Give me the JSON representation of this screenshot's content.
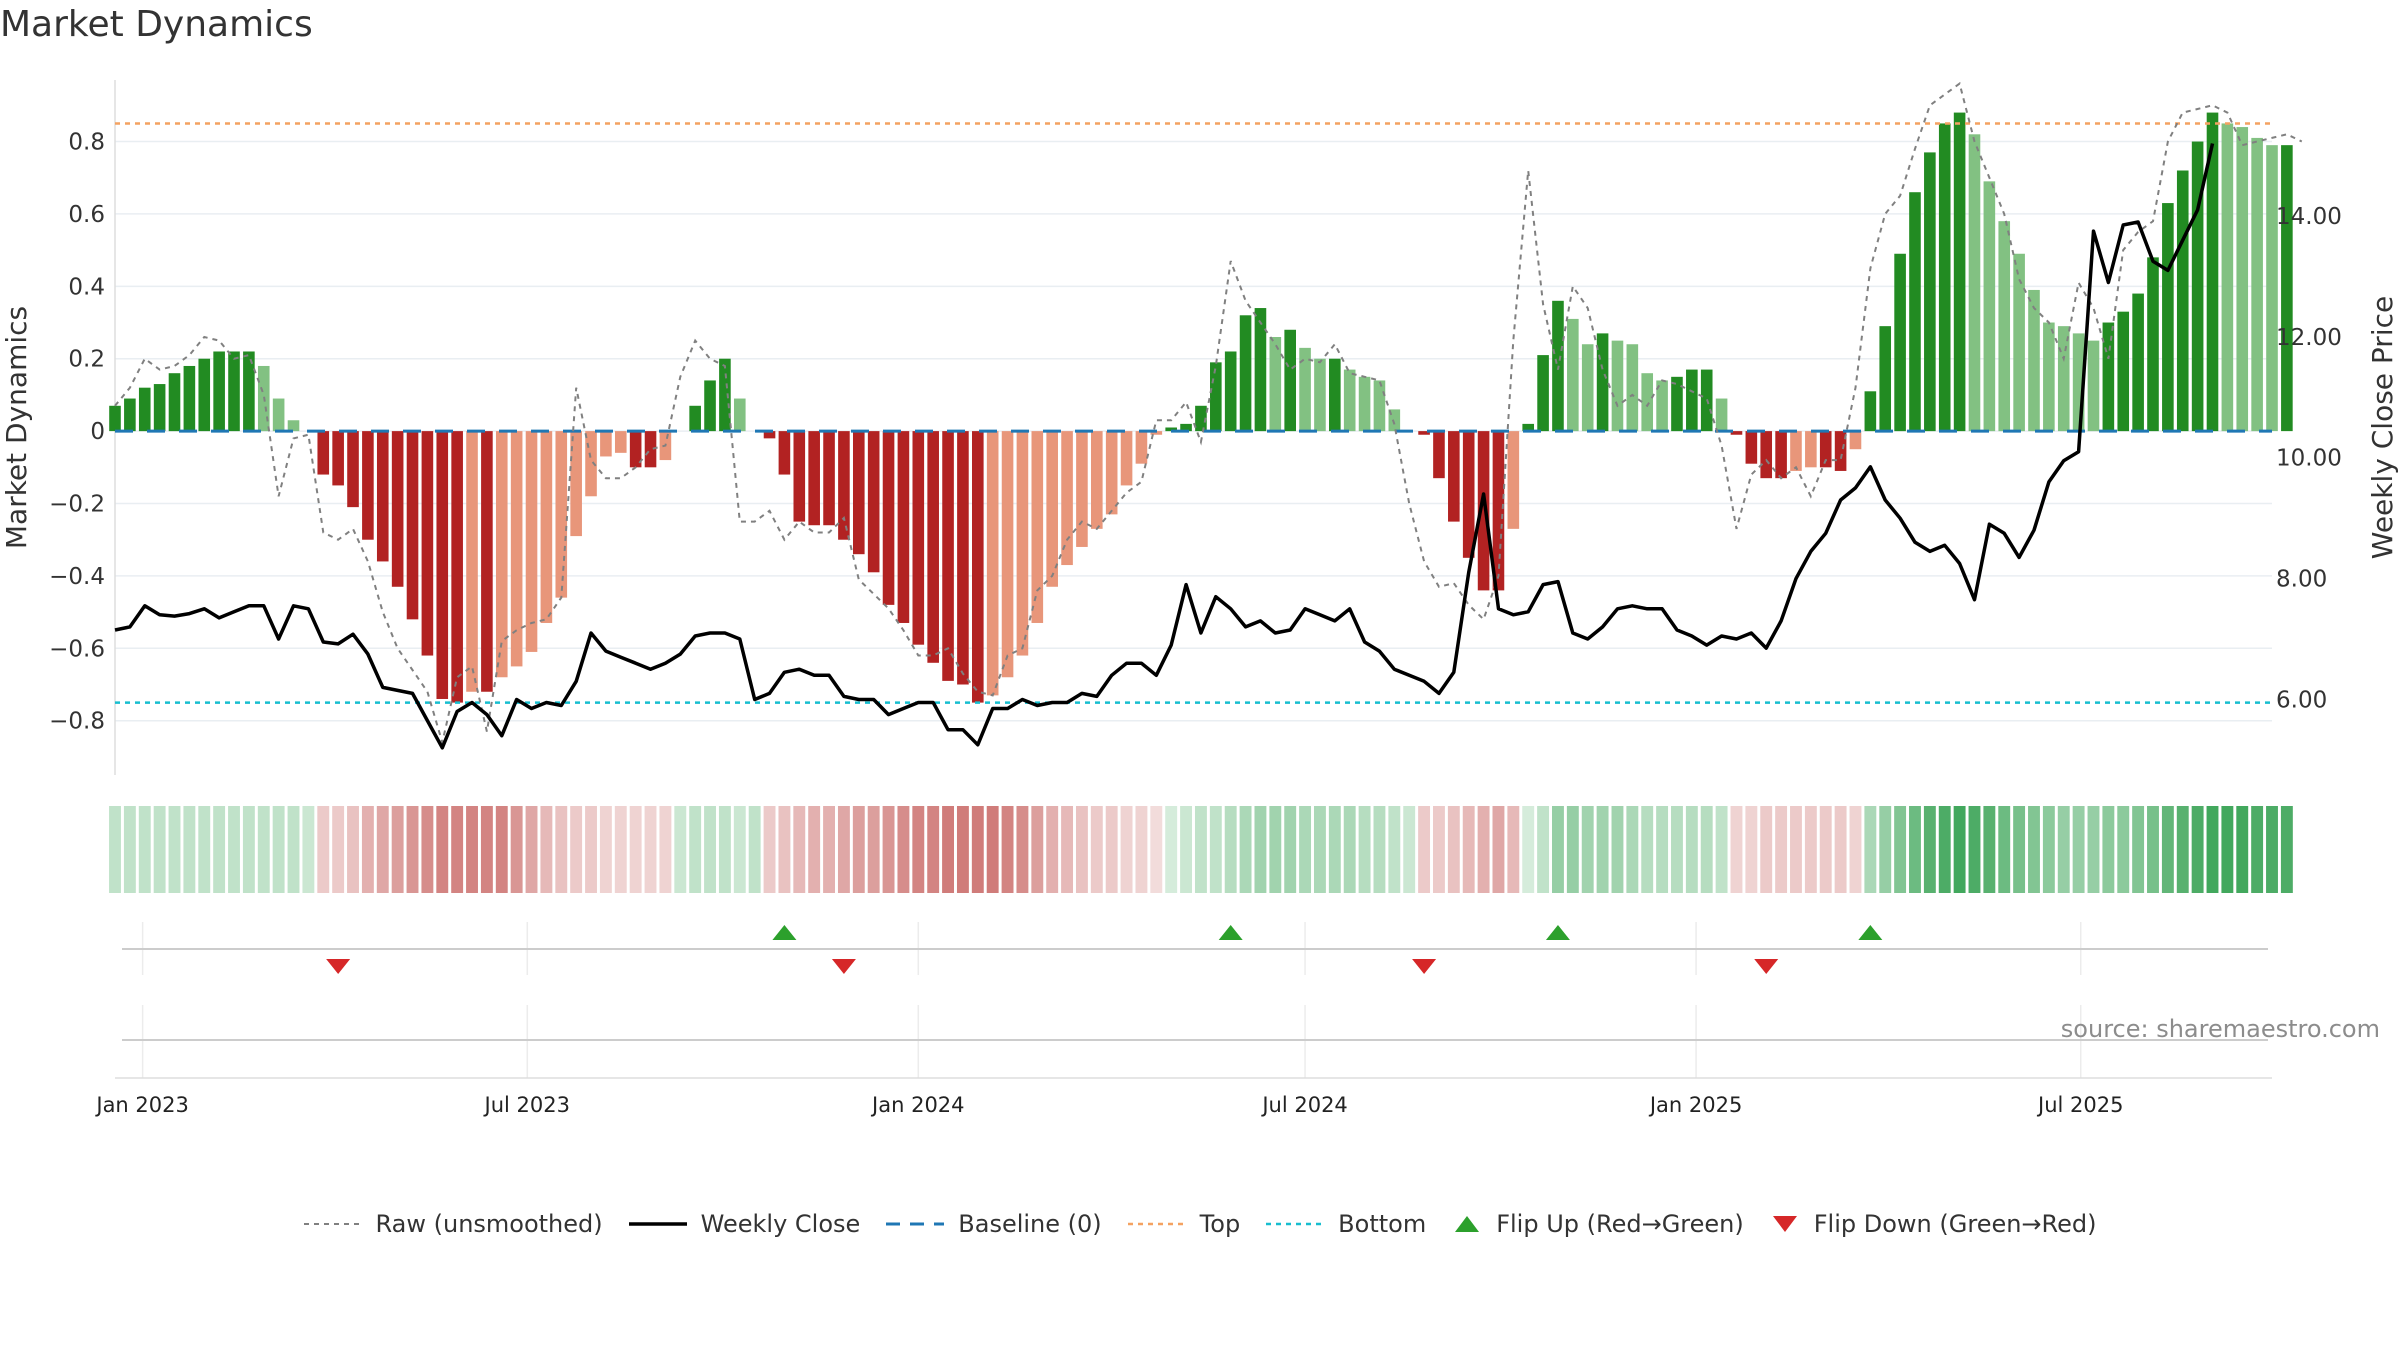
{
  "title": "Market Dynamics",
  "source": "source: sharemaestro.com",
  "chart_data": {
    "type": "bar",
    "title": "Market Dynamics",
    "ylabel": "Market Dynamics",
    "y2label": "Weekly Close Price",
    "ylim": [
      -0.95,
      0.97
    ],
    "y2lim": [
      4.75,
      16.25
    ],
    "yticks": [
      -0.8,
      -0.6,
      -0.4,
      -0.2,
      0,
      0.2,
      0.4,
      0.6,
      0.8
    ],
    "y2ticks": [
      6.0,
      8.0,
      10.0,
      12.0,
      14.0
    ],
    "y2tick_labels": [
      "6.00",
      "8.00",
      "10.00",
      "12.00",
      "14.00"
    ],
    "x_start": "2022-12-19",
    "x_end": "2025-09-29",
    "xtick_dates": [
      "2023-01-01",
      "2023-07-01",
      "2024-01-01",
      "2024-07-01",
      "2025-01-01",
      "2025-07-01"
    ],
    "xtick_labels": [
      "Jan 2023",
      "Jul 2023",
      "Jan 2024",
      "Jul 2024",
      "Jan 2025",
      "Jul 2025"
    ],
    "top_level": 0.85,
    "bottom_level": -0.75,
    "baseline": 0,
    "first_week": "2022-12-19",
    "market_dynamics": [
      0.07,
      0.09,
      0.12,
      0.13,
      0.16,
      0.18,
      0.2,
      0.22,
      0.22,
      0.22,
      0.18,
      0.09,
      0.03,
      0.0,
      -0.12,
      -0.15,
      -0.21,
      -0.3,
      -0.36,
      -0.43,
      -0.52,
      -0.62,
      -0.74,
      -0.75,
      -0.72,
      -0.72,
      -0.68,
      -0.65,
      -0.61,
      -0.53,
      -0.46,
      -0.29,
      -0.18,
      -0.07,
      -0.06,
      -0.1,
      -0.1,
      -0.08,
      0.0,
      0.07,
      0.14,
      0.2,
      0.09,
      0.0,
      -0.02,
      -0.12,
      -0.25,
      -0.26,
      -0.26,
      -0.3,
      -0.34,
      -0.39,
      -0.48,
      -0.53,
      -0.59,
      -0.64,
      -0.69,
      -0.7,
      -0.75,
      -0.73,
      -0.68,
      -0.62,
      -0.53,
      -0.43,
      -0.37,
      -0.32,
      -0.27,
      -0.23,
      -0.15,
      -0.09,
      -0.01,
      0.01,
      0.02,
      0.07,
      0.19,
      0.22,
      0.32,
      0.34,
      0.26,
      0.28,
      0.23,
      0.2,
      0.2,
      0.17,
      0.15,
      0.14,
      0.06,
      0.0,
      -0.01,
      -0.13,
      -0.25,
      -0.35,
      -0.44,
      -0.44,
      -0.27,
      0.02,
      0.21,
      0.36,
      0.31,
      0.24,
      0.27,
      0.25,
      0.24,
      0.16,
      0.14,
      0.15,
      0.17,
      0.17,
      0.09,
      -0.01,
      -0.09,
      -0.13,
      -0.13,
      -0.11,
      -0.1,
      -0.1,
      -0.11,
      -0.05,
      0.11,
      0.29,
      0.49,
      0.66,
      0.77,
      0.85,
      0.88,
      0.82,
      0.69,
      0.58,
      0.49,
      0.39,
      0.3,
      0.29,
      0.27,
      0.25,
      0.3,
      0.33,
      0.38,
      0.48,
      0.63,
      0.72,
      0.8,
      0.88,
      0.85,
      0.84,
      0.81,
      0.79,
      0.79
    ],
    "raw_unsmoothed": [
      0.07,
      0.12,
      0.2,
      0.17,
      0.18,
      0.21,
      0.26,
      0.25,
      0.2,
      0.21,
      0.1,
      -0.18,
      -0.02,
      -0.01,
      -0.28,
      -0.3,
      -0.27,
      -0.36,
      -0.5,
      -0.6,
      -0.66,
      -0.72,
      -0.86,
      -0.68,
      -0.65,
      -0.83,
      -0.58,
      -0.55,
      -0.53,
      -0.52,
      -0.46,
      0.12,
      -0.08,
      -0.13,
      -0.13,
      -0.1,
      -0.05,
      -0.04,
      0.15,
      0.25,
      0.2,
      0.18,
      -0.25,
      -0.25,
      -0.22,
      -0.3,
      -0.25,
      -0.28,
      -0.28,
      -0.24,
      -0.41,
      -0.45,
      -0.49,
      -0.55,
      -0.62,
      -0.62,
      -0.6,
      -0.67,
      -0.72,
      -0.73,
      -0.62,
      -0.6,
      -0.44,
      -0.4,
      -0.3,
      -0.25,
      -0.27,
      -0.22,
      -0.17,
      -0.14,
      0.03,
      0.03,
      0.08,
      -0.03,
      0.18,
      0.47,
      0.36,
      0.3,
      0.24,
      0.17,
      0.2,
      0.19,
      0.24,
      0.16,
      0.15,
      0.14,
      0.02,
      -0.2,
      -0.36,
      -0.43,
      -0.42,
      -0.48,
      -0.52,
      -0.4,
      0.25,
      0.72,
      0.35,
      0.17,
      0.4,
      0.34,
      0.17,
      0.07,
      0.1,
      0.07,
      0.14,
      0.13,
      0.11,
      0.09,
      -0.04,
      -0.27,
      -0.12,
      -0.08,
      -0.13,
      -0.1,
      -0.18,
      -0.08,
      -0.08,
      0.12,
      0.45,
      0.6,
      0.65,
      0.78,
      0.9,
      0.93,
      0.96,
      0.8,
      0.7,
      0.6,
      0.42,
      0.34,
      0.3,
      0.2,
      0.41,
      0.34,
      0.2,
      0.5,
      0.55,
      0.58,
      0.8,
      0.88,
      0.89,
      0.9,
      0.88,
      0.79,
      0.8,
      0.81,
      0.82,
      0.8
    ],
    "weekly_close": [
      7.15,
      7.2,
      7.55,
      7.4,
      7.38,
      7.42,
      7.5,
      7.35,
      7.45,
      7.55,
      7.55,
      7.0,
      7.55,
      7.5,
      6.95,
      6.92,
      7.08,
      6.75,
      6.2,
      6.15,
      6.1,
      5.65,
      5.2,
      5.8,
      5.95,
      5.75,
      5.4,
      6.0,
      5.85,
      5.95,
      5.9,
      6.3,
      7.1,
      6.8,
      6.7,
      6.6,
      6.5,
      6.6,
      6.75,
      7.05,
      7.1,
      7.1,
      7.0,
      6.0,
      6.1,
      6.45,
      6.5,
      6.4,
      6.4,
      6.05,
      6.0,
      6.0,
      5.75,
      5.85,
      5.95,
      5.95,
      5.5,
      5.5,
      5.25,
      5.85,
      5.85,
      6.0,
      5.9,
      5.95,
      5.95,
      6.1,
      6.05,
      6.4,
      6.6,
      6.6,
      6.4,
      6.9,
      7.9,
      7.1,
      7.7,
      7.5,
      7.2,
      7.3,
      7.1,
      7.15,
      7.5,
      7.4,
      7.3,
      7.5,
      6.95,
      6.8,
      6.5,
      6.4,
      6.3,
      6.1,
      6.45,
      8.1,
      9.4,
      7.5,
      7.4,
      7.45,
      7.9,
      7.95,
      7.1,
      7.0,
      7.2,
      7.5,
      7.55,
      7.5,
      7.5,
      7.15,
      7.05,
      6.9,
      7.05,
      7.0,
      7.1,
      6.85,
      7.3,
      8.0,
      8.45,
      8.75,
      9.3,
      9.5,
      9.85,
      9.3,
      9.0,
      8.6,
      8.45,
      8.55,
      8.25,
      7.65,
      8.9,
      8.75,
      8.35,
      8.8,
      9.6,
      9.95,
      10.1,
      13.75,
      12.9,
      13.85,
      13.9,
      13.25,
      13.1,
      13.6,
      14.1,
      15.2
    ],
    "strip_opacity": [
      0.3,
      0.3,
      0.3,
      0.3,
      0.3,
      0.3,
      0.3,
      0.3,
      0.3,
      0.3,
      0.3,
      0.3,
      0.3,
      0.25,
      0.3,
      0.3,
      0.35,
      0.45,
      0.5,
      0.55,
      0.6,
      0.65,
      0.7,
      0.7,
      0.7,
      0.7,
      0.7,
      0.6,
      0.5,
      0.4,
      0.35,
      0.3,
      0.3,
      0.25,
      0.25,
      0.25,
      0.25,
      0.25,
      0.25,
      0.3,
      0.3,
      0.3,
      0.25,
      0.3,
      0.3,
      0.35,
      0.4,
      0.45,
      0.45,
      0.5,
      0.55,
      0.55,
      0.6,
      0.65,
      0.7,
      0.7,
      0.75,
      0.75,
      0.75,
      0.75,
      0.7,
      0.65,
      0.55,
      0.45,
      0.4,
      0.35,
      0.3,
      0.3,
      0.25,
      0.25,
      0.2,
      0.2,
      0.25,
      0.3,
      0.3,
      0.35,
      0.4,
      0.45,
      0.45,
      0.45,
      0.4,
      0.4,
      0.4,
      0.4,
      0.35,
      0.35,
      0.3,
      0.25,
      0.3,
      0.3,
      0.35,
      0.4,
      0.45,
      0.5,
      0.4,
      0.2,
      0.3,
      0.5,
      0.5,
      0.45,
      0.45,
      0.45,
      0.4,
      0.35,
      0.35,
      0.35,
      0.35,
      0.35,
      0.3,
      0.25,
      0.25,
      0.3,
      0.3,
      0.3,
      0.3,
      0.3,
      0.3,
      0.25,
      0.4,
      0.5,
      0.6,
      0.7,
      0.8,
      0.85,
      0.9,
      0.85,
      0.8,
      0.7,
      0.65,
      0.6,
      0.55,
      0.5,
      0.5,
      0.5,
      0.55,
      0.55,
      0.6,
      0.65,
      0.75,
      0.8,
      0.85,
      0.9,
      0.9,
      0.9,
      0.85,
      0.85,
      0.85
    ],
    "flip_up_dates": [
      "2023-10-30",
      "2024-05-27",
      "2024-10-28",
      "2025-03-24"
    ],
    "flip_down_dates": [
      "2023-04-03",
      "2023-11-27",
      "2024-08-26",
      "2025-02-03"
    ],
    "colors": {
      "green_strong": "#228B22",
      "green_weak": "#82C182",
      "red_strong": "#B22222",
      "red_weak": "#E8967A",
      "strip_green": "#2e9e4b",
      "strip_red": "#c0504d",
      "weekly_close": "#000000",
      "raw": "#808080",
      "baseline": "#1f77b4",
      "top": "#f4a261",
      "bottom": "#17becf",
      "flip_up": "#2ca02c",
      "flip_down": "#d62728"
    }
  },
  "legend": [
    {
      "label": "Raw (unsmoothed)",
      "icon": "dotted-gray-line"
    },
    {
      "label": "Weekly Close",
      "icon": "solid-black-line"
    },
    {
      "label": "Baseline (0)",
      "icon": "dashed-blue-line"
    },
    {
      "label": "Top",
      "icon": "dotted-orange-line"
    },
    {
      "label": "Bottom",
      "icon": "dotted-cyan-line"
    },
    {
      "label": "Flip Up (Red→Green)",
      "icon": "green-up-triangle"
    },
    {
      "label": "Flip Down (Green→Red)",
      "icon": "red-down-triangle"
    }
  ]
}
